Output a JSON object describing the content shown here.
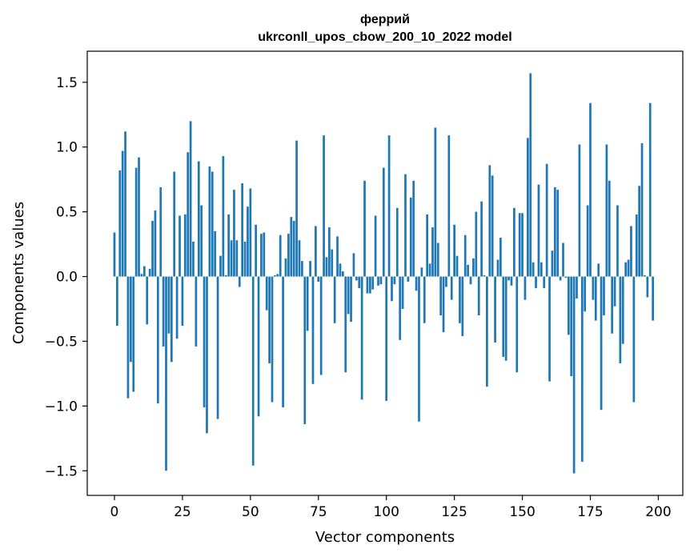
{
  "chart_data": {
    "type": "bar",
    "title_line1": "феррий",
    "title_line2": "ukrconll_upos_cbow_200_10_2022 model",
    "xlabel": "Vector components",
    "ylabel": "Components values",
    "xlim": [
      -10,
      209
    ],
    "ylim": [
      -1.69,
      1.74
    ],
    "xticks": [
      0,
      25,
      50,
      75,
      100,
      125,
      150,
      175,
      200
    ],
    "xtick_labels": [
      "0",
      "25",
      "50",
      "75",
      "100",
      "125",
      "150",
      "175",
      "200"
    ],
    "yticks": [
      -1.5,
      -1.0,
      -0.5,
      0.0,
      0.5,
      1.0,
      1.5
    ],
    "ytick_labels": [
      "−1.5",
      "−1.0",
      "−0.5",
      "0.0",
      "0.5",
      "1.0",
      "1.5"
    ],
    "grid": false,
    "bar_color": "#1f77b4",
    "values": [
      0.34,
      -0.38,
      0.82,
      0.97,
      1.12,
      -0.94,
      -0.66,
      -0.89,
      0.84,
      0.92,
      0.02,
      0.08,
      -0.37,
      0.06,
      0.43,
      0.51,
      -0.98,
      0.69,
      -0.54,
      -1.5,
      -0.44,
      -0.66,
      0.81,
      -0.48,
      0.47,
      -0.38,
      0.48,
      0.96,
      1.2,
      0.27,
      -0.54,
      0.89,
      0.55,
      -1.01,
      -1.21,
      0.85,
      0.81,
      0.35,
      -1.1,
      0.16,
      0.93,
      0.01,
      0.48,
      0.28,
      0.67,
      0.28,
      -0.08,
      0.72,
      0.27,
      0.54,
      0.68,
      -1.46,
      0.4,
      -1.08,
      0.33,
      0.34,
      -0.26,
      -0.67,
      -0.97,
      0.01,
      0.02,
      0.32,
      -1.01,
      0.14,
      0.33,
      0.46,
      0.43,
      1.05,
      0.28,
      0.12,
      -1.14,
      -0.42,
      0.12,
      -0.83,
      0.39,
      -0.04,
      -0.76,
      1.09,
      0.15,
      0.38,
      0.21,
      -0.36,
      0.31,
      0.1,
      0.04,
      -0.74,
      -0.29,
      -0.35,
      0.18,
      -0.03,
      -0.09,
      -0.95,
      0.74,
      -0.13,
      -0.13,
      -0.1,
      0.47,
      -0.07,
      -0.06,
      0.84,
      -0.96,
      1.09,
      -0.19,
      -0.06,
      0.53,
      -0.49,
      -0.25,
      0.79,
      -0.04,
      0.61,
      0.74,
      -0.11,
      -1.12,
      0.07,
      -0.36,
      0.48,
      0.1,
      0.38,
      1.15,
      0.26,
      -0.3,
      -0.43,
      -0.08,
      1.09,
      -0.18,
      0.4,
      0.16,
      -0.36,
      -0.46,
      0.32,
      0.09,
      -0.06,
      0.14,
      0.5,
      -0.3,
      0.58,
      0.01,
      -0.85,
      0.86,
      0.78,
      -0.51,
      0.13,
      0.3,
      -0.62,
      -0.65,
      -0.03,
      -0.07,
      0.53,
      -0.74,
      0.49,
      0.49,
      -0.18,
      1.07,
      1.57,
      0.11,
      -0.09,
      0.71,
      0.11,
      -0.09,
      0.87,
      -0.81,
      0.2,
      0.69,
      0.67,
      -0.03,
      0.26,
      -0.01,
      -0.45,
      -0.77,
      -1.52,
      -0.17,
      1.02,
      -1.43,
      -0.27,
      0.55,
      1.34,
      -0.18,
      -0.34,
      0.1,
      -1.03,
      -0.3,
      1.02,
      0.74,
      -0.44,
      -0.23,
      0.55,
      -0.67,
      -0.52,
      0.11,
      0.13,
      0.39,
      -0.97,
      0.48,
      0.7,
      1.03,
      0.01,
      -0.16,
      1.34,
      -0.34
    ]
  }
}
